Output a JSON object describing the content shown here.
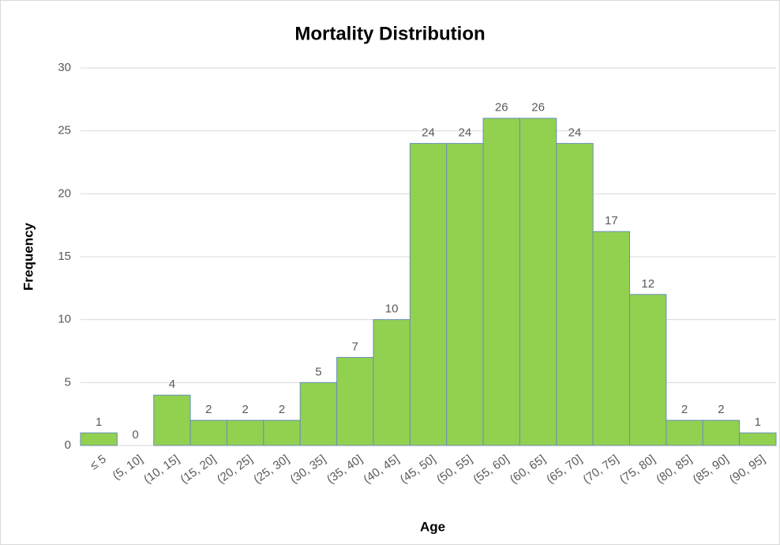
{
  "chart_data": {
    "type": "bar",
    "title": "Mortality Distribution",
    "x_label": "Age",
    "y_label": "Frequency",
    "categories": [
      "≤ 5",
      "(5, 10]",
      "(10, 15]",
      "(15, 20]",
      "(20, 25]",
      "(25, 30]",
      "(30, 35]",
      "(35, 40]",
      "(40, 45]",
      "(45, 50]",
      "(50, 55]",
      "(55, 60]",
      "(60, 65]",
      "(65, 70]",
      "(70, 75]",
      "(75, 80]",
      "(80, 85]",
      "(85, 90]",
      "(90, 95]"
    ],
    "values": [
      1,
      0,
      4,
      2,
      2,
      2,
      5,
      7,
      10,
      24,
      24,
      26,
      26,
      24,
      17,
      12,
      2,
      2,
      1
    ],
    "color": "#92d050",
    "edge_color": "#6a8fb8",
    "ylim": [
      0,
      30
    ],
    "yticks": [
      0,
      5,
      10,
      15,
      20,
      25,
      30
    ],
    "grid": true
  }
}
